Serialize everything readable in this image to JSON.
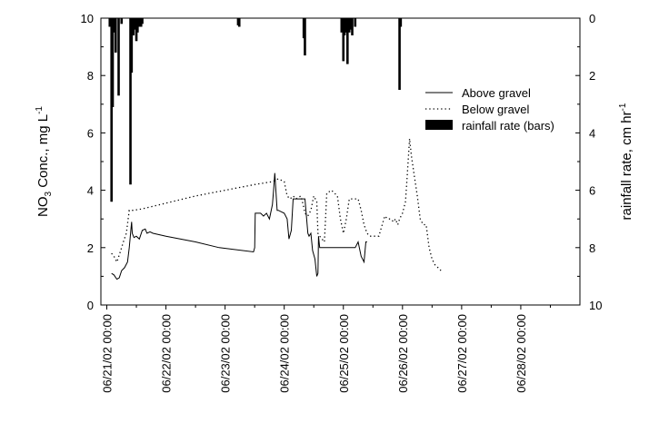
{
  "chart_data": {
    "type": "line",
    "title": "",
    "ylabel_main": "NO",
    "ylabel_sub": "3",
    "ylabel_rest": " Conc., mg L",
    "ylabel_sup": "-1",
    "y2label_main": "rainfall rate, cm hr",
    "y2label_sup": "-1",
    "xlabel": "",
    "ylim": [
      0,
      10
    ],
    "y2lim": [
      0,
      10
    ],
    "y2_inverted": true,
    "xlim": [
      -0.1,
      8.0
    ],
    "grid": false,
    "legend_position": "upper-right",
    "yticks": [
      "0",
      "2",
      "4",
      "6",
      "8",
      "10"
    ],
    "y2ticks": [
      "0",
      "2",
      "4",
      "6",
      "8",
      "10"
    ],
    "xticks": [
      {
        "x": 0,
        "label": "06/21/02 00:00"
      },
      {
        "x": 1,
        "label": "06/22/02 00:00"
      },
      {
        "x": 2,
        "label": "06/23/02 00:00"
      },
      {
        "x": 3,
        "label": "06/24/02 00:00"
      },
      {
        "x": 4,
        "label": "06/25/02 00:00"
      },
      {
        "x": 5,
        "label": "06/26/02 00:00"
      },
      {
        "x": 6,
        "label": "06/27/02 00:00"
      },
      {
        "x": 7,
        "label": "06/28/02 00:00"
      }
    ],
    "series": [
      {
        "name": "Above gravel",
        "style": "solid",
        "color": "#000000",
        "x": [
          0.08,
          0.12,
          0.17,
          0.21,
          0.25,
          0.3,
          0.35,
          0.38,
          0.42,
          0.43,
          0.46,
          0.5,
          0.55,
          0.6,
          0.65,
          0.68,
          0.73,
          0.78,
          1.0,
          1.5,
          1.9,
          2.48,
          2.5,
          2.51,
          2.6,
          2.65,
          2.7,
          2.75,
          2.8,
          2.82,
          2.84,
          2.88,
          2.9,
          3.0,
          3.05,
          3.08,
          3.12,
          3.15,
          3.2,
          3.3,
          3.35,
          3.4,
          3.42,
          3.45,
          3.48,
          3.52,
          3.55,
          3.57,
          3.58,
          3.6,
          3.64,
          3.67,
          3.7,
          3.8,
          4.0,
          4.2,
          4.25,
          4.3,
          4.35,
          4.38,
          4.4
        ],
        "y": [
          1.1,
          1.05,
          0.9,
          0.95,
          1.2,
          1.3,
          1.5,
          2.0,
          2.9,
          2.5,
          2.35,
          2.4,
          2.3,
          2.6,
          2.65,
          2.5,
          2.55,
          2.5,
          2.4,
          2.2,
          2.0,
          1.85,
          2.0,
          3.2,
          3.2,
          3.1,
          3.2,
          3.0,
          3.5,
          4.0,
          4.6,
          3.3,
          3.3,
          3.2,
          3.0,
          2.3,
          2.6,
          3.7,
          3.7,
          3.7,
          3.7,
          2.5,
          2.4,
          2.5,
          1.9,
          1.6,
          1.0,
          1.1,
          2.4,
          2.0,
          2.0,
          2.0,
          2.0,
          2.0,
          2.0,
          2.0,
          2.2,
          1.7,
          1.5,
          2.2,
          2.2
        ]
      },
      {
        "name": "Below gravel",
        "style": "dotted",
        "color": "#000000",
        "x": [
          0.08,
          0.12,
          0.17,
          0.22,
          0.28,
          0.33,
          0.38,
          0.45,
          0.6,
          1.0,
          1.5,
          2.0,
          2.5,
          2.8,
          2.9,
          3.0,
          3.05,
          3.1,
          3.15,
          3.2,
          3.28,
          3.32,
          3.35,
          3.4,
          3.45,
          3.5,
          3.55,
          3.57,
          3.6,
          3.68,
          3.72,
          3.8,
          3.9,
          3.95,
          4.0,
          4.05,
          4.1,
          4.15,
          4.2,
          4.25,
          4.3,
          4.35,
          4.4,
          4.45,
          4.5,
          4.6,
          4.7,
          4.75,
          4.8,
          4.85,
          4.88,
          4.92,
          4.95,
          5.0,
          5.05,
          5.08,
          5.12,
          5.15,
          5.2,
          5.25,
          5.3,
          5.35,
          5.4,
          5.45,
          5.5,
          5.55,
          5.6,
          5.65
        ],
        "y": [
          1.8,
          1.7,
          1.5,
          1.8,
          2.2,
          2.5,
          3.3,
          3.3,
          3.35,
          3.55,
          3.8,
          4.0,
          4.2,
          4.3,
          4.4,
          4.3,
          3.8,
          3.7,
          3.8,
          3.7,
          3.8,
          3.5,
          3.2,
          3.1,
          3.3,
          3.8,
          3.6,
          2.5,
          2.4,
          2.2,
          3.9,
          4.0,
          3.8,
          3.0,
          2.5,
          3.0,
          3.7,
          3.7,
          3.7,
          3.7,
          3.3,
          2.8,
          2.5,
          2.4,
          2.4,
          2.4,
          3.1,
          3.0,
          3.0,
          2.9,
          3.0,
          2.8,
          3.0,
          3.2,
          3.6,
          4.5,
          5.8,
          5.2,
          4.5,
          3.8,
          3.0,
          2.8,
          2.8,
          2.0,
          1.6,
          1.4,
          1.3,
          1.2
        ]
      }
    ],
    "rainfall": {
      "name": "rainfall rate (bars)",
      "style": "bars",
      "color": "#000000",
      "x": [
        0.05,
        0.08,
        0.1,
        0.12,
        0.15,
        0.2,
        0.25,
        0.4,
        0.42,
        0.45,
        0.48,
        0.5,
        0.52,
        0.55,
        0.58,
        0.6,
        2.22,
        2.24,
        3.33,
        3.35,
        3.97,
        4.0,
        4.02,
        4.05,
        4.07,
        4.1,
        4.12,
        4.15,
        4.2,
        4.95,
        4.97
      ],
      "y": [
        0.3,
        6.4,
        3.1,
        0.5,
        1.2,
        2.7,
        0.2,
        5.8,
        1.9,
        0.6,
        0.4,
        0.8,
        0.5,
        0.3,
        0.3,
        0.2,
        0.25,
        0.3,
        0.7,
        1.3,
        0.5,
        1.5,
        0.6,
        0.5,
        1.6,
        0.5,
        0.4,
        0.6,
        0.3,
        2.5,
        0.3
      ]
    }
  }
}
